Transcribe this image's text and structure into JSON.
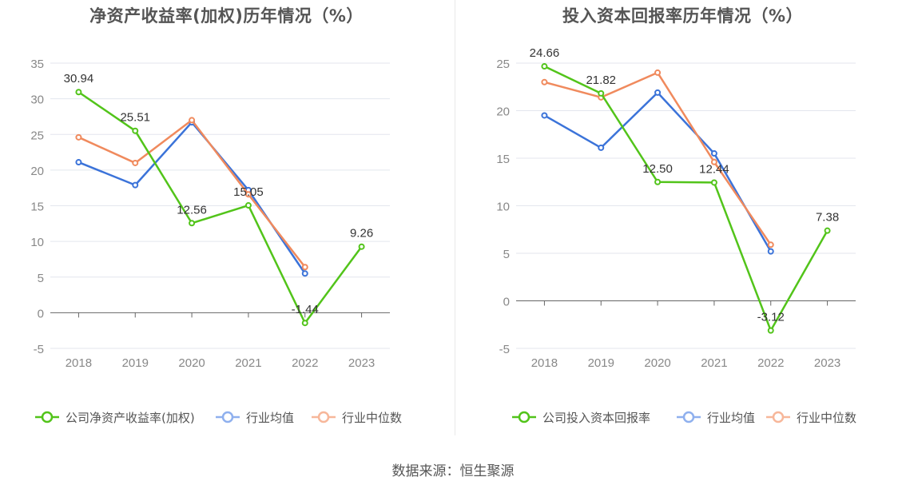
{
  "source_text": "数据来源：恒生聚源",
  "chart_data": [
    {
      "type": "line",
      "title": "净资产收益率(加权)历年情况（%）",
      "x": [
        "2018",
        "2019",
        "2020",
        "2021",
        "2022",
        "2023"
      ],
      "ylim": [
        -5,
        35
      ],
      "yticks": [
        -5,
        0,
        5,
        10,
        15,
        20,
        25,
        30,
        35
      ],
      "grid": true,
      "legend_position": "bottom",
      "series": [
        {
          "name": "公司净资产收益率(加权)",
          "color": "#52c41a",
          "values": [
            30.94,
            25.51,
            12.56,
            15.05,
            -1.44,
            9.26
          ],
          "labels": [
            "30.94",
            "25.51",
            "12.56",
            "15.05",
            "-1.44",
            "9.26"
          ]
        },
        {
          "name": "行业均值",
          "color": "#3b73d9",
          "values": [
            21.1,
            17.9,
            26.7,
            17.2,
            5.5,
            null
          ]
        },
        {
          "name": "行业中位数",
          "color": "#f08a5d",
          "values": [
            24.6,
            21.0,
            27.0,
            16.6,
            6.4,
            null
          ]
        }
      ]
    },
    {
      "type": "line",
      "title": "投入资本回报率历年情况（%）",
      "x": [
        "2018",
        "2019",
        "2020",
        "2021",
        "2022",
        "2023"
      ],
      "ylim": [
        -5,
        25
      ],
      "yticks": [
        -5,
        0,
        5,
        10,
        15,
        20,
        25
      ],
      "grid": true,
      "legend_position": "bottom",
      "series": [
        {
          "name": "公司投入资本回报率",
          "color": "#52c41a",
          "values": [
            24.66,
            21.82,
            12.5,
            12.44,
            -3.12,
            7.38
          ],
          "labels": [
            "24.66",
            "21.82",
            "12.50",
            "12.44",
            "-3.12",
            "7.38"
          ]
        },
        {
          "name": "行业均值",
          "color": "#3b73d9",
          "values": [
            19.5,
            16.1,
            21.9,
            15.5,
            5.2,
            null
          ]
        },
        {
          "name": "行业中位数",
          "color": "#f08a5d",
          "values": [
            23.0,
            21.4,
            24.0,
            14.6,
            5.9,
            null
          ]
        }
      ]
    }
  ]
}
